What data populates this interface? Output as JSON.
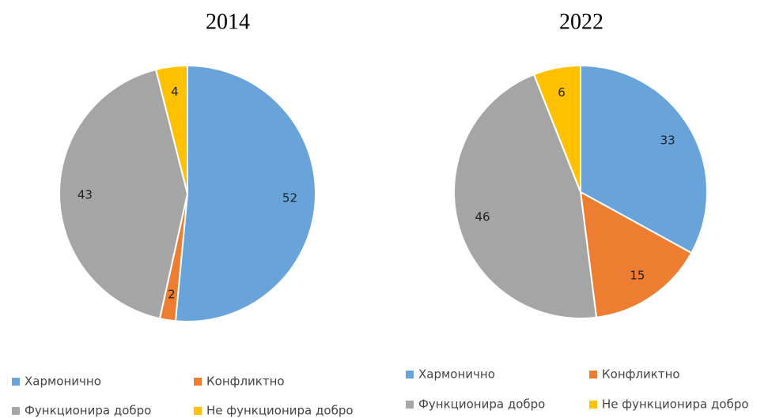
{
  "chart_data": [
    {
      "type": "pie",
      "title": "2014",
      "categories": [
        "Хармонично",
        "Конфликтно",
        "Функционира добро",
        "Не функционира добро"
      ],
      "values": [
        52,
        2,
        43,
        4
      ],
      "colors": [
        "#68a3d9",
        "#ed7d31",
        "#a5a5a5",
        "#ffc000"
      ]
    },
    {
      "type": "pie",
      "title": "2022",
      "categories": [
        "Хармонично",
        "Конфликтно",
        "Функционира добро",
        "Не функционира добро"
      ],
      "values": [
        33,
        15,
        46,
        6
      ],
      "colors": [
        "#68a3d9",
        "#ed7d31",
        "#a5a5a5",
        "#ffc000"
      ]
    }
  ]
}
